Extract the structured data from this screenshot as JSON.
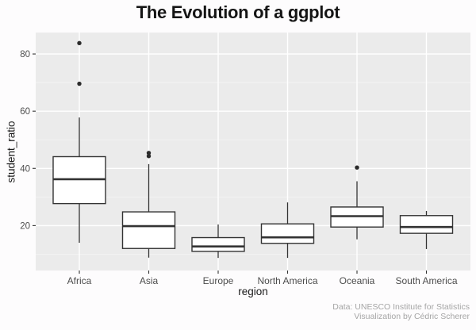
{
  "title": "The Evolution of a ggplot",
  "caption": {
    "line1": "Data: UNESCO Institute for Statistics",
    "line2": "Visualization by Cédric Scherer"
  },
  "chart_data": {
    "type": "boxplot",
    "title": "The Evolution of a ggplot",
    "xlabel": "region",
    "ylabel": "student_ratio",
    "categories": [
      "Africa",
      "Asia",
      "Europe",
      "North America",
      "Oceania",
      "South America"
    ],
    "series": [
      {
        "category": "Africa",
        "whisker_low": 14.0,
        "q1": 27.7,
        "median": 36.2,
        "q3": 44.1,
        "whisker_high": 57.8,
        "outliers": [
          69.6,
          83.8
        ]
      },
      {
        "category": "Asia",
        "whisker_low": 8.8,
        "q1": 12.0,
        "median": 19.8,
        "q3": 24.8,
        "whisker_high": 41.5,
        "outliers": [
          44.3,
          45.4
        ]
      },
      {
        "category": "Europe",
        "whisker_low": 8.7,
        "q1": 11.0,
        "median": 12.7,
        "q3": 15.8,
        "whisker_high": 20.4,
        "outliers": []
      },
      {
        "category": "North America",
        "whisker_low": 8.7,
        "q1": 13.8,
        "median": 15.9,
        "q3": 20.6,
        "whisker_high": 28.1,
        "outliers": []
      },
      {
        "category": "Oceania",
        "whisker_low": 15.2,
        "q1": 19.5,
        "median": 23.3,
        "q3": 26.5,
        "whisker_high": 35.5,
        "outliers": [
          40.3
        ]
      },
      {
        "category": "South America",
        "whisker_low": 11.8,
        "q1": 17.3,
        "median": 19.5,
        "q3": 23.5,
        "whisker_high": 25.1,
        "outliers": []
      }
    ],
    "y_ticks": [
      20,
      40,
      60,
      80
    ],
    "y_minor_ticks": [
      10,
      30,
      50,
      70
    ],
    "ylim": [
      4.3,
      87.5
    ],
    "grid": true,
    "legend": "none",
    "colors": {
      "panel_bg": "#EBEBEB",
      "grid_major": "#FFFFFF",
      "grid_minor": "#F4F4F4",
      "box_stroke": "#333333",
      "box_fill": "#FFFFFF",
      "outlier": "#2b2b2b",
      "axis_text": "#4d4d4d",
      "tick_mark": "#333333"
    }
  }
}
